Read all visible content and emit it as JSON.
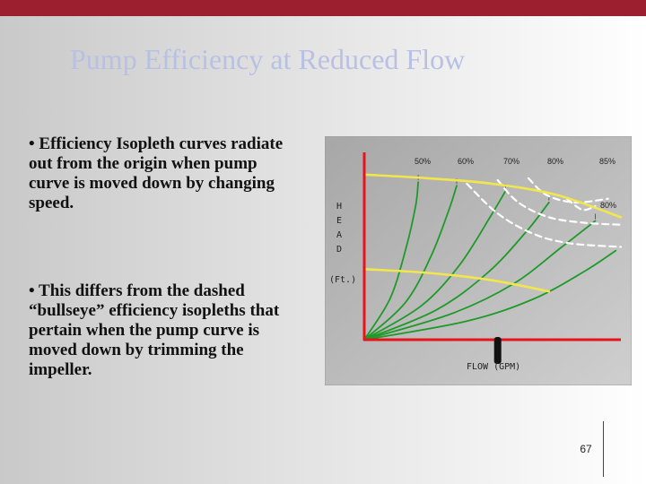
{
  "slide": {
    "title": "Pump Efficiency at Reduced Flow",
    "bullets": [
      "• Efficiency Isopleth curves radiate out from the origin when pump curve is moved down by changing speed.",
      "• This differs from the dashed “bullseye” efficiency isopleths that pertain when the pump curve is moved down by trimming the impeller."
    ],
    "page_number": "67"
  },
  "colors": {
    "accent_bar": "#9b1f2e",
    "title": "#b8c1e3",
    "axes": "#e8141a",
    "isopleth": "#1f9a2a",
    "pump_curve": "#f2e64d",
    "dashed_isopleth": "#ffffff"
  },
  "chart_data": {
    "type": "line",
    "ylabel_letters": [
      "H",
      "E",
      "A",
      "D"
    ],
    "yunit": "(Ft.)",
    "xlabel": "FLOW (GPM)",
    "efficiency_labels": [
      "50%",
      "60%",
      "70%",
      "80%",
      "85%",
      "80%"
    ],
    "grid": false,
    "xlim": [
      0,
      100
    ],
    "ylim": [
      0,
      100
    ],
    "origin": [
      0,
      0
    ],
    "efficiency_isopleths": [
      {
        "label": "50%",
        "points": [
          [
            0,
            0
          ],
          [
            10,
            22
          ],
          [
            16,
            48
          ],
          [
            20,
            72
          ],
          [
            21,
            85
          ]
        ]
      },
      {
        "label": "60%",
        "points": [
          [
            0,
            0
          ],
          [
            16,
            20
          ],
          [
            26,
            45
          ],
          [
            33,
            70
          ],
          [
            36,
            83
          ]
        ]
      },
      {
        "label": "70%",
        "points": [
          [
            0,
            0
          ],
          [
            22,
            18
          ],
          [
            37,
            40
          ],
          [
            49,
            66
          ],
          [
            55,
            80
          ]
        ]
      },
      {
        "label": "80%",
        "points": [
          [
            0,
            0
          ],
          [
            28,
            16
          ],
          [
            48,
            36
          ],
          [
            63,
            58
          ],
          [
            72,
            74
          ]
        ]
      },
      {
        "label": "85%",
        "points": [
          [
            0,
            0
          ],
          [
            34,
            14
          ],
          [
            58,
            30
          ],
          [
            77,
            50
          ],
          [
            90,
            64
          ]
        ]
      },
      {
        "label": "80%",
        "points": [
          [
            0,
            0
          ],
          [
            40,
            10
          ],
          [
            66,
            22
          ],
          [
            86,
            37
          ],
          [
            98,
            48
          ]
        ]
      }
    ],
    "pump_curves": [
      {
        "points": [
          [
            0,
            89
          ],
          [
            25,
            87
          ],
          [
            50,
            84
          ],
          [
            75,
            78
          ],
          [
            100,
            66
          ]
        ]
      },
      {
        "points": [
          [
            0,
            38
          ],
          [
            25,
            36
          ],
          [
            50,
            32
          ],
          [
            72,
            26
          ]
        ]
      }
    ],
    "dashed_isopleths": [
      {
        "points": [
          [
            40,
            84
          ],
          [
            52,
            68
          ],
          [
            66,
            57
          ],
          [
            80,
            52
          ],
          [
            100,
            50
          ]
        ]
      },
      {
        "points": [
          [
            52,
            86
          ],
          [
            60,
            74
          ],
          [
            72,
            66
          ],
          [
            86,
            63
          ],
          [
            100,
            62
          ]
        ]
      },
      {
        "points": [
          [
            64,
            87
          ],
          [
            71,
            78
          ],
          [
            82,
            74
          ],
          [
            95,
            76
          ]
        ]
      },
      {
        "points": [
          [
            79,
            76
          ],
          [
            85,
            70
          ],
          [
            90,
            72
          ]
        ]
      }
    ],
    "flow_marker": {
      "x": 52
    }
  }
}
